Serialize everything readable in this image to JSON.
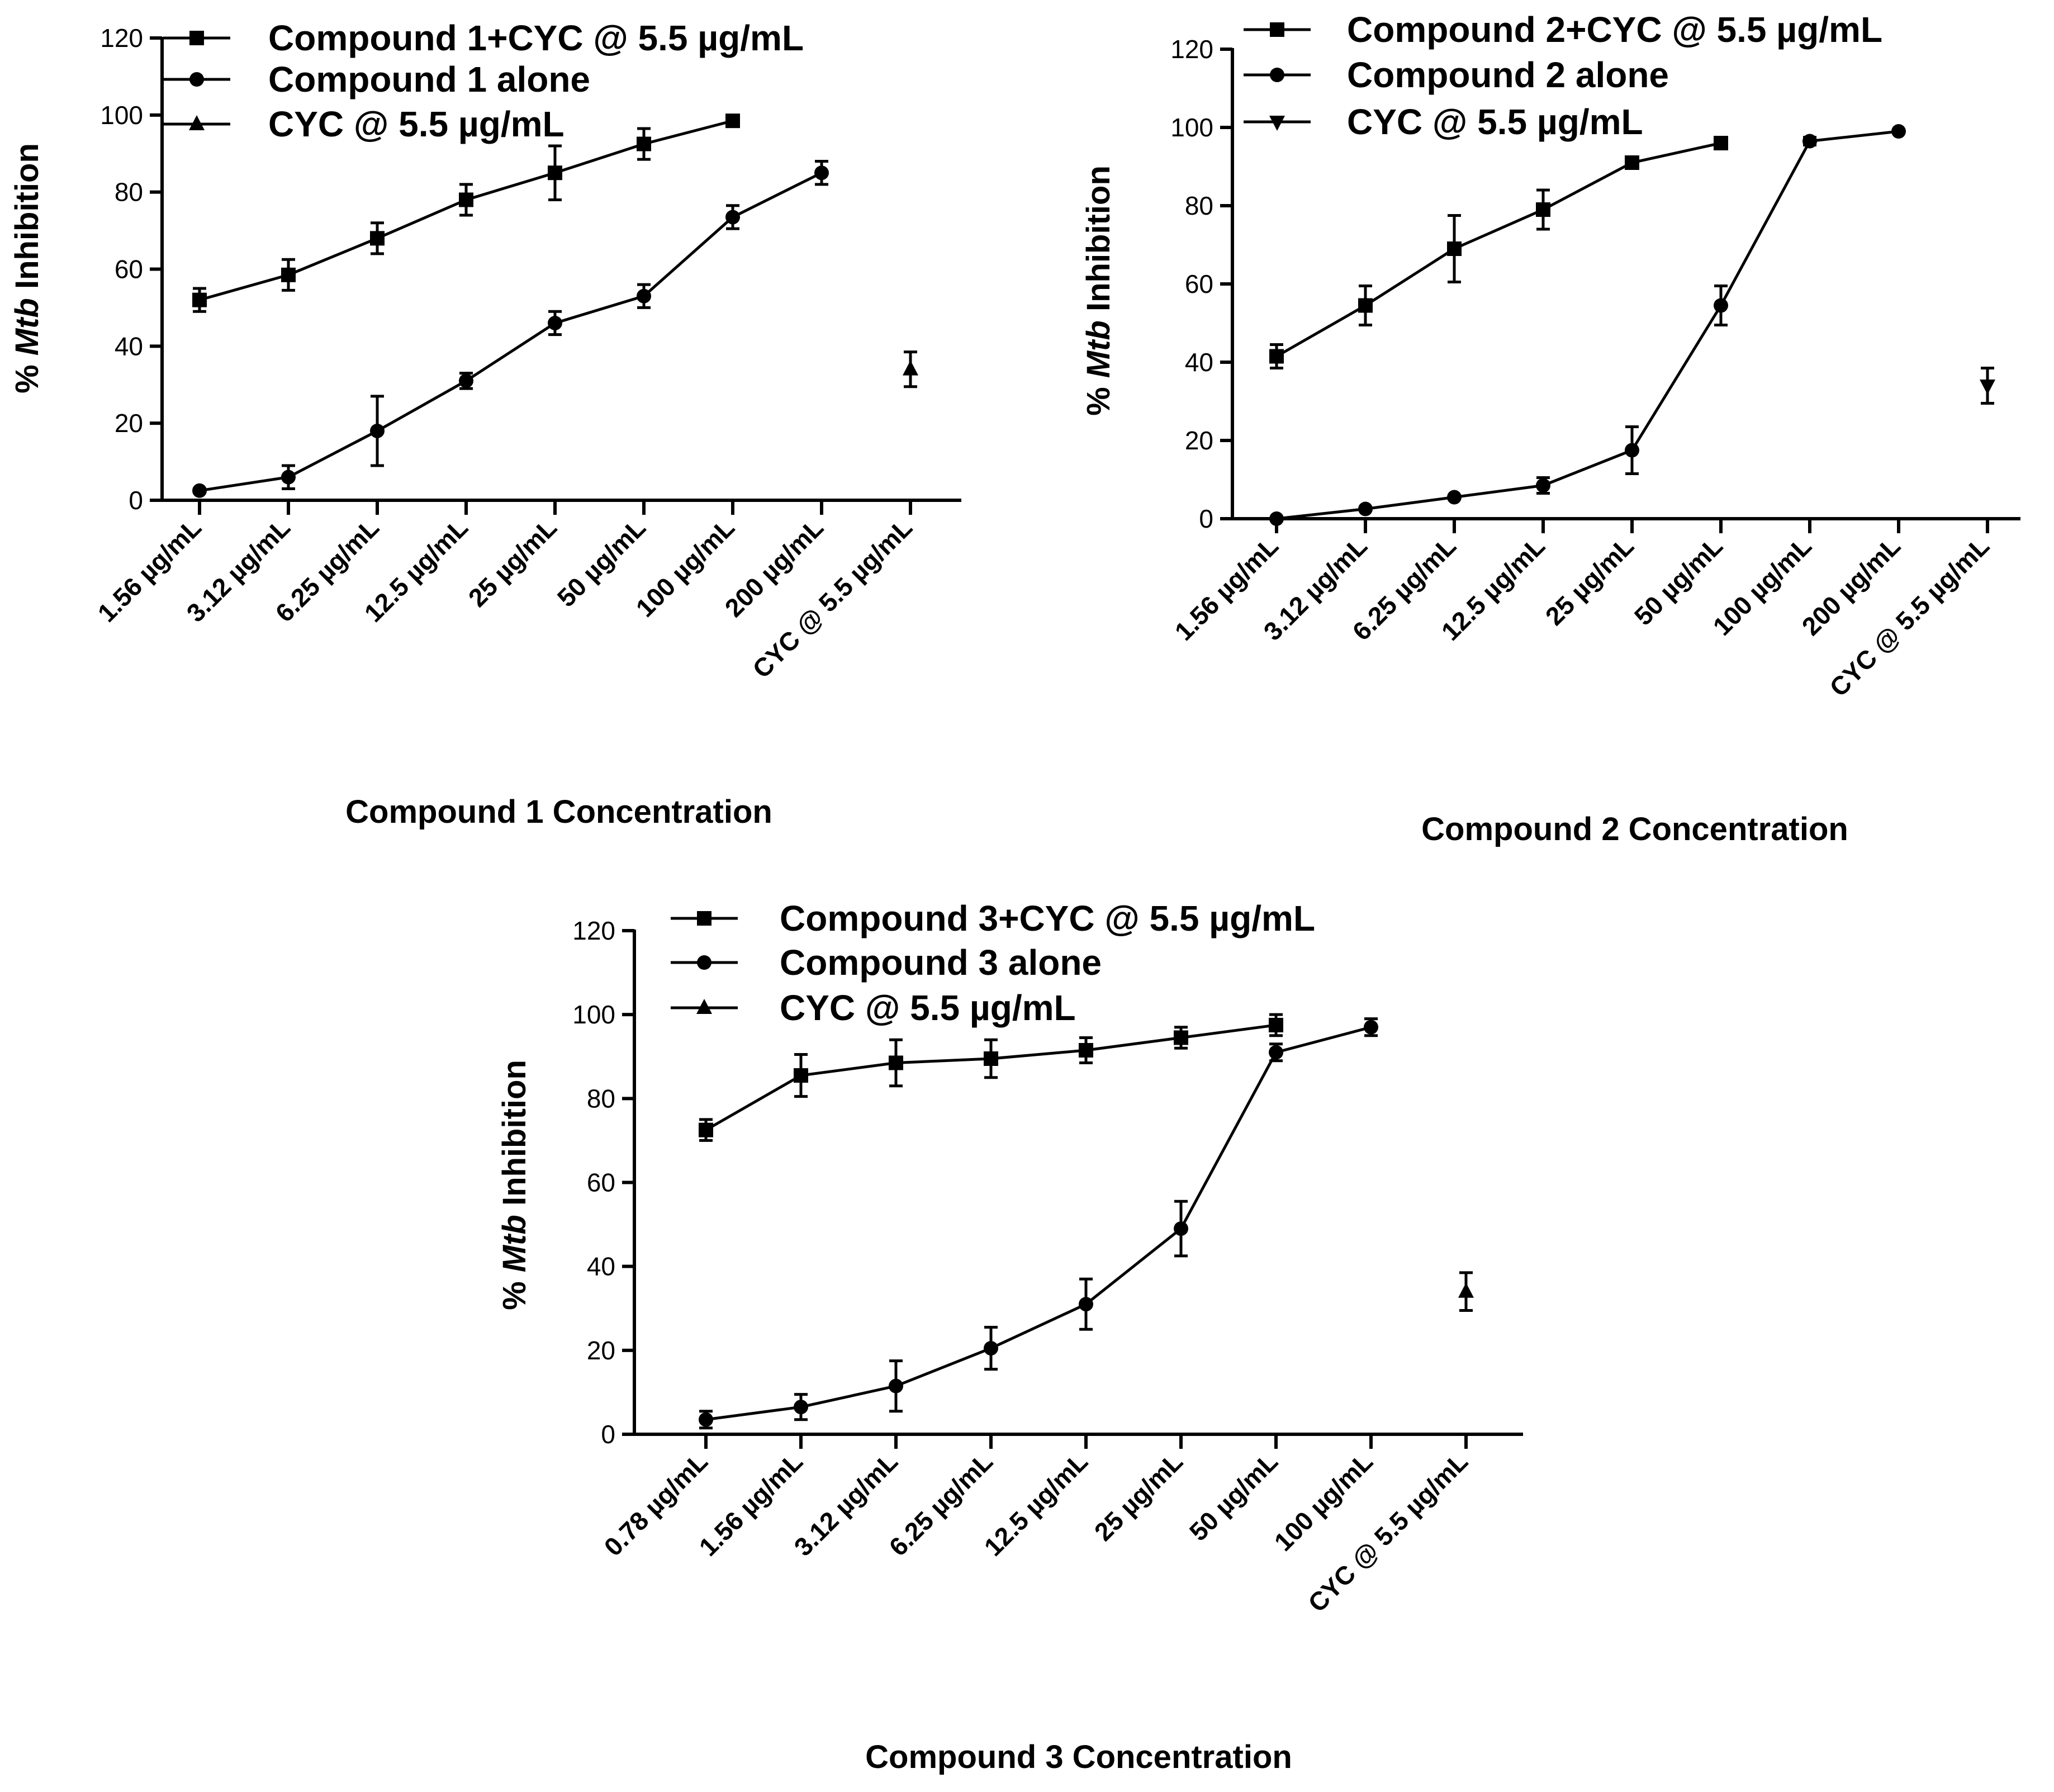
{
  "figure": {
    "axis_label_prefix": "% ",
    "axis_label_italic": "Mtb",
    "axis_label_suffix": " Inhibition"
  },
  "chart_data": [
    {
      "type": "line",
      "ylabel": "% Mtb Inhibition",
      "xlabel": "Compound 1 Concentration",
      "ylim": [
        0,
        120
      ],
      "yticks": [
        0,
        20,
        40,
        60,
        80,
        100,
        120
      ],
      "grid": false,
      "legend_position": "top",
      "categories": [
        "1.56 µg/mL",
        "3.12 µg/mL",
        "6.25 µg/mL",
        "12.5 µg/mL",
        "25 µg/mL",
        "50 µg/mL",
        "100 µg/mL",
        "200 µg/mL",
        "CYC @ 5.5 µg/mL"
      ],
      "series": [
        {
          "name": "Compound 1+CYC @ 5.5 µg/mL",
          "marker": "square",
          "color": "#000000",
          "values": [
            52,
            58.5,
            68,
            78,
            85,
            92.5,
            98.5,
            null,
            null
          ],
          "errors": [
            3,
            4,
            4,
            4,
            7,
            4,
            0,
            null,
            null
          ]
        },
        {
          "name": "Compound 1 alone",
          "marker": "circle",
          "color": "#000000",
          "values": [
            2.5,
            6,
            18,
            31,
            46,
            53,
            73.5,
            85,
            null
          ],
          "errors": [
            0.5,
            3,
            9,
            2,
            3,
            3,
            3,
            3,
            null
          ]
        },
        {
          "name": "CYC @ 5.5 µg/mL",
          "marker": "triangle-up",
          "color": "#000000",
          "values": [
            null,
            null,
            null,
            null,
            null,
            null,
            null,
            null,
            34
          ],
          "errors": [
            null,
            null,
            null,
            null,
            null,
            null,
            null,
            null,
            4.5
          ]
        }
      ]
    },
    {
      "type": "line",
      "ylabel": "% Mtb Inhibition",
      "xlabel": "Compound 2 Concentration",
      "ylim": [
        0,
        120
      ],
      "yticks": [
        0,
        20,
        40,
        60,
        80,
        100,
        120
      ],
      "grid": false,
      "legend_position": "top",
      "categories": [
        "1.56 µg/mL",
        "3.12 µg/mL",
        "6.25 µg/mL",
        "12.5 µg/mL",
        "25 µg/mL",
        "50 µg/mL",
        "100 µg/mL",
        "200 µg/mL",
        "CYC @ 5.5 µg/mL"
      ],
      "series": [
        {
          "name": "Compound 2+CYC @ 5.5 µg/mL",
          "marker": "square",
          "color": "#000000",
          "values": [
            41.5,
            54.5,
            69,
            79,
            91,
            96,
            null,
            null,
            null
          ],
          "errors": [
            3,
            5,
            8.5,
            5,
            1.5,
            1.5,
            null,
            null,
            null
          ]
        },
        {
          "name": "Compound 2 alone",
          "marker": "circle",
          "color": "#000000",
          "values": [
            0,
            2.5,
            5.5,
            8.5,
            17.5,
            54.5,
            96.5,
            99,
            null
          ],
          "errors": [
            0,
            0,
            0,
            2,
            6,
            5,
            1,
            0,
            null
          ]
        },
        {
          "name": "CYC @ 5.5 µg/mL",
          "marker": "triangle-down",
          "color": "#000000",
          "values": [
            null,
            null,
            null,
            null,
            null,
            null,
            null,
            null,
            34
          ],
          "errors": [
            null,
            null,
            null,
            null,
            null,
            null,
            null,
            null,
            4.5
          ]
        }
      ]
    },
    {
      "type": "line",
      "ylabel": "% Mtb Inhibition",
      "xlabel": "Compound 3 Concentration",
      "ylim": [
        0,
        120
      ],
      "yticks": [
        0,
        20,
        40,
        60,
        80,
        100,
        120
      ],
      "grid": false,
      "legend_position": "top",
      "categories": [
        "0.78 µg/mL",
        "1.56 µg/mL",
        "3.12 µg/mL",
        "6.25 µg/mL",
        "12.5 µg/mL",
        "25 µg/mL",
        "50 µg/mL",
        "100 µg/mL",
        "CYC @ 5.5 µg/mL"
      ],
      "series": [
        {
          "name": "Compound 3+CYC @ 5.5 µg/mL",
          "marker": "square",
          "color": "#000000",
          "values": [
            72.5,
            85.5,
            88.5,
            89.5,
            91.5,
            94.5,
            97.5,
            null,
            null
          ],
          "errors": [
            2.5,
            5,
            5.5,
            4.5,
            3,
            2.5,
            2.5,
            null,
            null
          ]
        },
        {
          "name": "Compound 3 alone",
          "marker": "circle",
          "color": "#000000",
          "values": [
            3.5,
            6.5,
            11.5,
            20.5,
            31,
            49,
            91,
            97,
            null
          ],
          "errors": [
            2,
            3,
            6,
            5,
            6,
            6.5,
            2,
            2,
            null
          ]
        },
        {
          "name": "CYC @ 5.5 µg/mL",
          "marker": "triangle-up",
          "color": "#000000",
          "values": [
            null,
            null,
            null,
            null,
            null,
            null,
            null,
            null,
            34
          ],
          "errors": [
            null,
            null,
            null,
            null,
            null,
            null,
            null,
            null,
            4.5
          ]
        }
      ]
    }
  ]
}
